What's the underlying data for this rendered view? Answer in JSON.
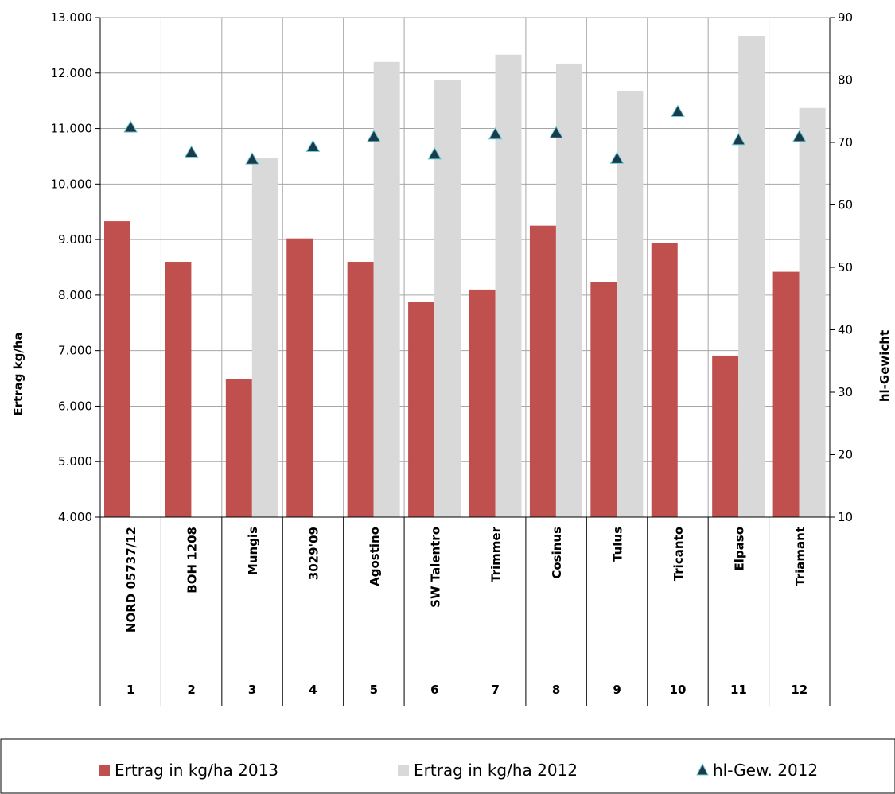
{
  "chart_data": {
    "type": "bar",
    "categories": [
      "NORD 05737/12",
      "BOH 1208",
      "Mungis",
      "3029'09",
      "Agostino",
      "SW Talentro",
      "Trimmer",
      "Cosinus",
      "Tulus",
      "Tricanto",
      "Elpaso",
      "Triamant"
    ],
    "numbers": [
      "1",
      "2",
      "3",
      "4",
      "5",
      "6",
      "7",
      "8",
      "9",
      "10",
      "11",
      "12"
    ],
    "series": [
      {
        "name": "Ertrag in kg/ha 2013",
        "type": "bar",
        "axis": "left",
        "color": "#c0504d",
        "values": [
          9330,
          8600,
          6480,
          9020,
          8600,
          7880,
          8100,
          9250,
          8240,
          8930,
          6910,
          8420
        ]
      },
      {
        "name": "Ertrag in kg/ha 2012",
        "type": "bar",
        "axis": "left",
        "color": "#d9d9d9",
        "values": [
          null,
          null,
          10470,
          null,
          12200,
          11870,
          12330,
          12170,
          11670,
          null,
          12670,
          11370
        ]
      },
      {
        "name": "hl-Gew. 2012",
        "type": "scatter",
        "axis": "right",
        "color": "#1b3a4b",
        "marker": "triangle",
        "values": [
          72.4,
          68.4,
          67.3,
          69.3,
          70.9,
          68.1,
          71.3,
          71.5,
          67.4,
          74.9,
          70.4,
          70.9
        ]
      }
    ],
    "ylabel": "Ertrag kg/ha",
    "y2label": "hl-Gewicht",
    "ylim": [
      4000,
      13000
    ],
    "y2lim": [
      10,
      90
    ],
    "yticks": [
      "4.000",
      "5.000",
      "6.000",
      "7.000",
      "8.000",
      "9.000",
      "10.000",
      "11.000",
      "12.000",
      "13.000"
    ],
    "y2ticks": [
      "10",
      "20",
      "30",
      "40",
      "50",
      "60",
      "70",
      "80",
      "90"
    ],
    "grid": true,
    "legend": "bottom"
  }
}
